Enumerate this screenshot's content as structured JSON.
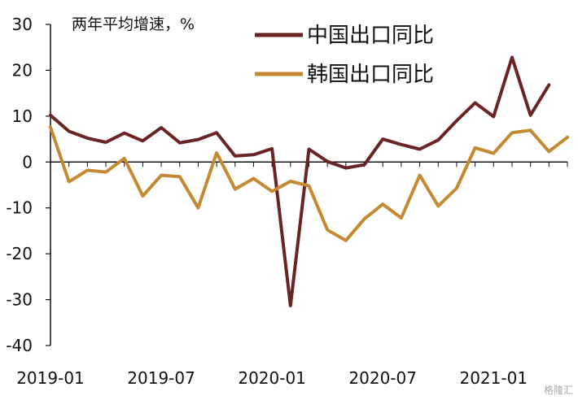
{
  "chart_data": {
    "type": "line",
    "title": "",
    "subtitle": "两年平均增速，%",
    "xlabel": "",
    "ylabel": "",
    "ylim": [
      -40,
      30
    ],
    "y_ticks": [
      30,
      20,
      10,
      0,
      -10,
      -20,
      -30,
      -40
    ],
    "x_tick_labels": [
      "2019-01",
      "2019-07",
      "2020-01",
      "2020-07",
      "2021-01"
    ],
    "x": [
      "2019-01",
      "2019-02",
      "2019-03",
      "2019-04",
      "2019-05",
      "2019-06",
      "2019-07",
      "2019-08",
      "2019-09",
      "2019-10",
      "2019-11",
      "2019-12",
      "2020-01",
      "2020-02",
      "2020-03",
      "2020-04",
      "2020-05",
      "2020-06",
      "2020-07",
      "2020-08",
      "2020-09",
      "2020-10",
      "2020-11",
      "2020-12",
      "2021-01",
      "2021-02",
      "2021-03",
      "2021-04",
      "2021-05"
    ],
    "series": [
      {
        "name": "中国出口同比",
        "color": "#6b2424",
        "values": [
          10.2,
          6.7,
          5.2,
          4.3,
          6.3,
          4.6,
          7.5,
          4.2,
          4.9,
          6.4,
          1.3,
          1.6,
          2.9,
          -31.3,
          2.8,
          0.1,
          -1.3,
          -0.6,
          5.0,
          3.8,
          2.8,
          4.8,
          9.0,
          12.9,
          9.9,
          22.8,
          10.2,
          16.8,
          null
        ]
      },
      {
        "name": "韩国出口同比",
        "color": "#c48a32",
        "values": [
          7.6,
          -4.3,
          -1.8,
          -2.2,
          0.8,
          -7.4,
          -2.9,
          -3.2,
          -10.0,
          2.0,
          -5.9,
          -3.6,
          -6.4,
          -4.2,
          -5.2,
          -14.8,
          -17.1,
          -12.4,
          -9.2,
          -12.2,
          -2.9,
          -9.6,
          -5.7,
          3.1,
          1.9,
          6.4,
          6.9,
          2.3,
          5.4
        ]
      }
    ],
    "legend": "top-right",
    "grid": false
  },
  "watermark": "格隆汇"
}
